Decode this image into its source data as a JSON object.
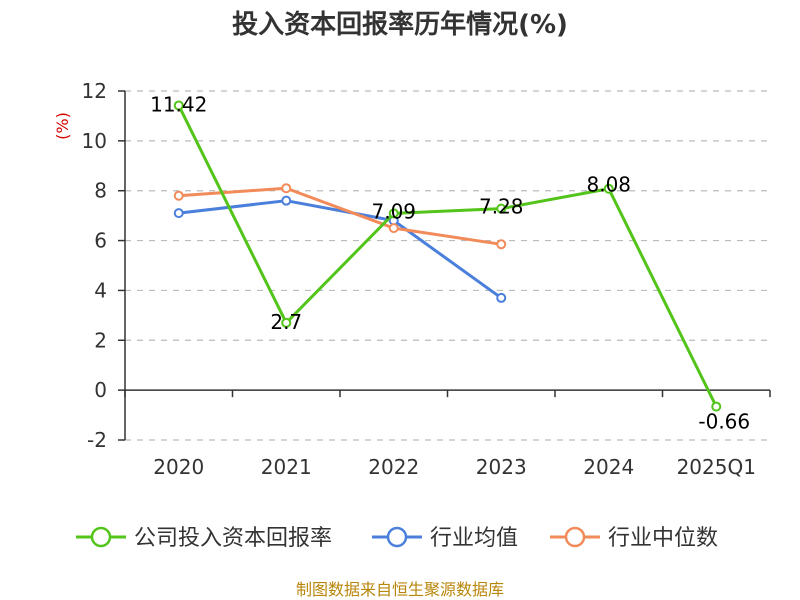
{
  "chart_data": {
    "type": "line",
    "title": "投入资本回报率历年情况(%)",
    "ylabel": "(%)",
    "categories": [
      "2020",
      "2021",
      "2022",
      "2023",
      "2024",
      "2025Q1"
    ],
    "ylim": [
      -2,
      12
    ],
    "yticks": [
      12,
      10,
      8,
      6,
      4,
      2,
      0,
      -2
    ],
    "grid": true,
    "legend_position": "bottom",
    "series": [
      {
        "name": "公司投入资本回报率",
        "color": "#52c41a",
        "values": [
          11.42,
          2.7,
          7.09,
          7.28,
          8.08,
          -0.66
        ],
        "labels": [
          "11.42",
          "2.7",
          "7.09",
          "7.28",
          "8.08",
          "-0.66"
        ]
      },
      {
        "name": "行业均值",
        "color": "#4a7fdb",
        "values": [
          7.1,
          7.6,
          6.8,
          3.7,
          null,
          null
        ]
      },
      {
        "name": "行业中位数",
        "color": "#f28b5a",
        "values": [
          7.8,
          8.1,
          6.5,
          5.85,
          null,
          null
        ]
      }
    ]
  },
  "source": "制图数据来自恒生聚源数据库"
}
